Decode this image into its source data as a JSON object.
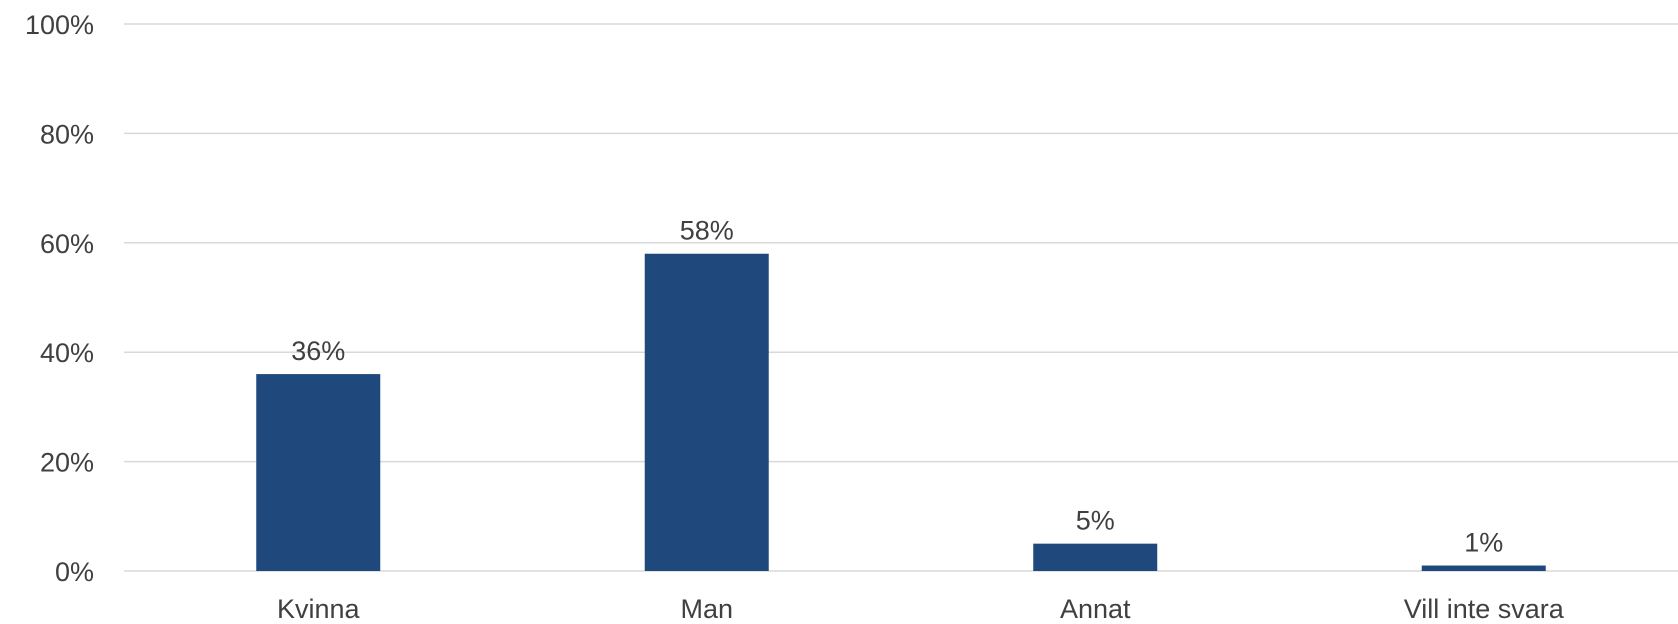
{
  "chart_data": {
    "type": "bar",
    "categories": [
      "Kvinna",
      "Man",
      "Annat",
      "Vill inte svara"
    ],
    "values": [
      36,
      58,
      5,
      1
    ],
    "data_labels": [
      "36%",
      "58%",
      "5%",
      "1%"
    ],
    "title": "",
    "xlabel": "",
    "ylabel": "",
    "ylim": [
      0,
      100
    ],
    "yticks": [
      0,
      20,
      40,
      60,
      80,
      100
    ],
    "ytick_labels": [
      "0%",
      "20%",
      "40%",
      "60%",
      "80%",
      "100%"
    ],
    "grid": true,
    "legend": "none",
    "bar_color": "#1f497d"
  }
}
